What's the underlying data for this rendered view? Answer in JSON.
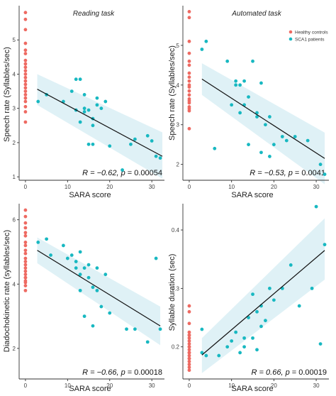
{
  "colors": {
    "healthy": "#ee6a62",
    "sca1": "#18b8c1",
    "band": "#d9eff4",
    "fit": "#111111"
  },
  "legend": {
    "position": "top-right of panel B",
    "items": [
      {
        "label": "Healthy controls",
        "color": "#ee6a62"
      },
      {
        "label": "SCA1 patients",
        "color": "#18b8c1"
      }
    ]
  },
  "chart_data": [
    {
      "type": "scatter",
      "title": "Reading task",
      "xlabel": "SARA score",
      "ylabel": "Speech rate (Syllables/sec)",
      "xlim": [
        -1.5,
        33
      ],
      "ylim": [
        0.9,
        6.0
      ],
      "xticks": [
        0,
        10,
        20,
        30
      ],
      "yticks": [
        1,
        2,
        3,
        4,
        5
      ],
      "stat_prefix": "R = −0.62,  ",
      "stat_p": "p",
      "stat_suffix": " = 0.00054",
      "fit": {
        "x": [
          2.8,
          32.5
        ],
        "y": [
          3.56,
          1.6
        ]
      },
      "ci": {
        "upper": [
          4.0,
          2.3
        ],
        "lower": [
          3.1,
          0.95
        ]
      },
      "series": [
        {
          "name": "Healthy controls",
          "x": [
            0,
            0,
            0,
            0,
            0,
            0,
            0,
            0,
            0,
            0,
            0,
            0,
            0,
            0,
            0,
            0,
            0,
            0,
            0,
            0,
            0,
            0
          ],
          "y": [
            5.8,
            5.6,
            5.3,
            4.9,
            4.7,
            4.6,
            4.4,
            4.3,
            4.2,
            4.1,
            4.0,
            3.9,
            3.8,
            3.7,
            3.6,
            3.5,
            3.4,
            3.3,
            3.2,
            3.05,
            2.9,
            2.6
          ]
        },
        {
          "name": "SCA1 patients",
          "x": [
            3,
            5,
            9,
            11,
            12,
            12,
            13,
            13,
            14,
            14,
            14,
            15,
            15,
            16,
            16,
            16,
            17,
            17,
            18,
            19,
            20,
            23,
            25,
            26,
            29,
            30,
            31,
            32
          ],
          "y": [
            3.2,
            3.4,
            3.2,
            3.5,
            3.85,
            2.95,
            3.85,
            2.6,
            3.4,
            2.9,
            3.0,
            2.95,
            1.95,
            2.7,
            2.5,
            1.95,
            3.3,
            3.1,
            3.0,
            3.2,
            1.9,
            1.2,
            1.95,
            2.1,
            2.2,
            2.05,
            1.6,
            1.55
          ]
        }
      ]
    },
    {
      "type": "scatter",
      "title": "Automated task",
      "xlabel": "SARA score",
      "ylabel": "Speech rate (Syllables/sec)",
      "xlim": [
        -1.5,
        33
      ],
      "ylim": [
        1.6,
        6.0
      ],
      "xticks": [
        0,
        10,
        20,
        30
      ],
      "yticks": [
        2,
        3,
        4,
        5
      ],
      "stat_prefix": "R = −0.53,  ",
      "stat_p": "p",
      "stat_suffix": " = 0.0041",
      "fit": {
        "x": [
          3,
          32
        ],
        "y": [
          4.15,
          2.15
        ]
      },
      "ci": {
        "upper": [
          4.55,
          2.8
        ],
        "lower": [
          3.75,
          1.5
        ]
      },
      "series": [
        {
          "name": "Healthy controls",
          "x": [
            0,
            0,
            0,
            0,
            0,
            0,
            0,
            0,
            0,
            0,
            0,
            0,
            0,
            0,
            0,
            0,
            0,
            0,
            0,
            0
          ],
          "y": [
            5.85,
            5.7,
            5.1,
            4.8,
            4.6,
            4.5,
            4.3,
            4.2,
            4.1,
            4.0,
            3.95,
            3.85,
            3.75,
            3.65,
            3.6,
            3.55,
            3.45,
            3.4,
            3.35,
            2.9
          ]
        },
        {
          "name": "SCA1 patients",
          "x": [
            3,
            4,
            6,
            9,
            10,
            11,
            11,
            12,
            12,
            13,
            13,
            14,
            14,
            15,
            16,
            16,
            17,
            17,
            18,
            19,
            19,
            20,
            22,
            23,
            25,
            28,
            31,
            32
          ],
          "y": [
            4.9,
            5.1,
            2.4,
            4.6,
            3.5,
            4.0,
            4.1,
            3.3,
            4.0,
            4.1,
            3.5,
            3.7,
            2.5,
            4.6,
            3.3,
            3.2,
            2.3,
            4.05,
            3.0,
            2.2,
            3.2,
            2.5,
            2.7,
            2.6,
            2.7,
            2.6,
            2.0,
            1.75
          ]
        }
      ]
    },
    {
      "type": "scatter",
      "title": "",
      "xlabel": "SARA score",
      "ylabel": "Diadochokinetic rate (syllables/sec)",
      "xlim": [
        -1.5,
        33
      ],
      "ylim": [
        1.05,
        6.5
      ],
      "xticks": [
        0,
        10,
        20,
        30
      ],
      "yticks": [
        2,
        4,
        6
      ],
      "stat_prefix": "R = −0.66,  ",
      "stat_p": "p",
      "stat_suffix": " = 0.00018",
      "fit": {
        "x": [
          2.8,
          32
        ],
        "y": [
          5.05,
          2.7
        ]
      },
      "ci": {
        "upper": [
          5.45,
          3.3
        ],
        "lower": [
          4.65,
          2.1
        ]
      },
      "series": [
        {
          "name": "Healthy controls",
          "x": [
            0,
            0,
            0,
            0,
            0,
            0,
            0,
            0,
            0,
            0,
            0,
            0,
            0,
            0,
            0,
            0,
            0,
            0,
            0,
            0,
            0,
            0
          ],
          "y": [
            6.3,
            6.1,
            5.9,
            5.6,
            5.5,
            5.3,
            5.2,
            5.05,
            4.95,
            4.8,
            4.7,
            4.6,
            4.5,
            4.4,
            4.3,
            4.2,
            4.1,
            4.05,
            3.95,
            3.8,
            4.2,
            5.75
          ]
        },
        {
          "name": "SCA1 patients",
          "x": [
            3,
            5,
            6,
            9,
            10,
            11,
            12,
            12,
            13,
            13,
            13,
            14,
            14,
            15,
            15,
            16,
            16,
            17,
            17,
            18,
            19,
            20,
            24,
            26,
            29,
            31,
            32
          ],
          "y": [
            5.3,
            5.4,
            4.9,
            5.2,
            4.8,
            4.9,
            4.7,
            4.5,
            5.0,
            4.3,
            3.8,
            4.5,
            3.0,
            4.6,
            4.2,
            3.9,
            2.7,
            4.5,
            3.8,
            3.3,
            4.3,
            3.1,
            2.6,
            2.6,
            2.2,
            4.8,
            2.6
          ]
        }
      ]
    },
    {
      "type": "scatter",
      "title": "",
      "xlabel": "SARA score",
      "ylabel": "Syllable duration (sec)",
      "xlim": [
        -1.5,
        33
      ],
      "ylim": [
        0.145,
        0.445
      ],
      "xticks": [
        0,
        10,
        20,
        30
      ],
      "yticks": [
        0.2,
        0.3,
        0.4
      ],
      "stat_prefix": "R = 0.66,  ",
      "stat_p": "p",
      "stat_suffix": " = 0.00019",
      "fit": {
        "x": [
          3,
          32
        ],
        "y": [
          0.186,
          0.365
        ]
      },
      "ci": {
        "upper": [
          0.215,
          0.42
        ],
        "lower": [
          0.155,
          0.315
        ]
      },
      "series": [
        {
          "name": "Healthy controls",
          "x": [
            0,
            0,
            0,
            0,
            0,
            0,
            0,
            0,
            0,
            0,
            0,
            0,
            0,
            0,
            0,
            0,
            0,
            0,
            0,
            0,
            0
          ],
          "y": [
            0.27,
            0.26,
            0.24,
            0.225,
            0.22,
            0.215,
            0.21,
            0.205,
            0.2,
            0.2,
            0.195,
            0.19,
            0.185,
            0.18,
            0.18,
            0.175,
            0.17,
            0.165,
            0.16,
            0.22,
            0.19
          ]
        },
        {
          "name": "SCA1 patients",
          "x": [
            3,
            3,
            4,
            7,
            9,
            10,
            11,
            12,
            13,
            13,
            14,
            15,
            15,
            16,
            16,
            17,
            17,
            18,
            19,
            20,
            22,
            24,
            26,
            29,
            30,
            31,
            32
          ],
          "y": [
            0.23,
            0.19,
            0.185,
            0.185,
            0.2,
            0.21,
            0.225,
            0.19,
            0.215,
            0.2,
            0.25,
            0.215,
            0.29,
            0.26,
            0.195,
            0.235,
            0.27,
            0.245,
            0.3,
            0.28,
            0.3,
            0.34,
            0.27,
            0.3,
            0.44,
            0.205,
            0.375
          ]
        }
      ]
    }
  ]
}
